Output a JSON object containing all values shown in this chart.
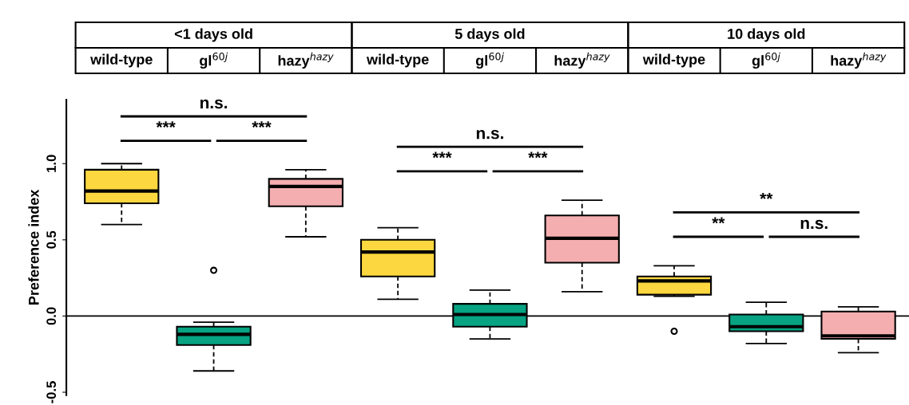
{
  "chart_data": {
    "type": "box",
    "ylabel": "Preference index",
    "categories": [
      "wild-type",
      "gl$^{60j}$",
      "hazy$^{hazy}$",
      "wild-type",
      "gl$^{60j}$",
      "hazy$^{hazy}$",
      "wild-type",
      "gl$^{60j}$",
      "hazy$^{hazy}$"
    ],
    "colors": [
      "#fdd73f",
      "#07a383",
      "#f5aeb0",
      "#fdd73f",
      "#07a383",
      "#f5aeb0",
      "#fdd73f",
      "#07a383",
      "#f5aeb0"
    ],
    "boxes": [
      {
        "low": 0.6,
        "q1": 0.74,
        "median": 0.82,
        "q3": 0.96,
        "high": 1.0
      },
      {
        "low": -0.36,
        "q1": -0.19,
        "median": -0.12,
        "q3": -0.07,
        "high": -0.04,
        "outliers": [
          0.3
        ]
      },
      {
        "low": 0.52,
        "q1": 0.72,
        "median": 0.85,
        "q3": 0.9,
        "high": 0.96
      },
      {
        "low": 0.11,
        "q1": 0.26,
        "median": 0.42,
        "q3": 0.5,
        "high": 0.58
      },
      {
        "low": -0.15,
        "q1": -0.07,
        "median": 0.01,
        "q3": 0.08,
        "high": 0.17
      },
      {
        "low": 0.16,
        "q1": 0.35,
        "median": 0.51,
        "q3": 0.66,
        "high": 0.76
      },
      {
        "low": 0.13,
        "q1": 0.14,
        "median": 0.23,
        "q3": 0.26,
        "high": 0.33,
        "outliers": [
          -0.1
        ]
      },
      {
        "low": -0.18,
        "q1": -0.1,
        "median": -0.07,
        "q3": 0.01,
        "high": 0.09
      },
      {
        "low": -0.24,
        "q1": -0.15,
        "median": -0.13,
        "q3": 0.03,
        "high": 0.06
      }
    ],
    "annotations": [
      "<1 days old",
      "5 days old",
      "10 days old",
      "n.s.",
      "***",
      "***",
      "n.s.",
      "***",
      "***",
      "**",
      "**",
      "n.s."
    ],
    "ref_lines": [
      {
        "axis": "y",
        "value": 0,
        "color": "#000000"
      }
    ],
    "ylim": [
      -0.52,
      1.42
    ],
    "yticks": [
      -0.5,
      {
        "value": 0,
        "label": "0.0"
      },
      0.5,
      {
        "value": 1,
        "label": "1.0"
      }
    ],
    "grid": false,
    "legend": false
  }
}
